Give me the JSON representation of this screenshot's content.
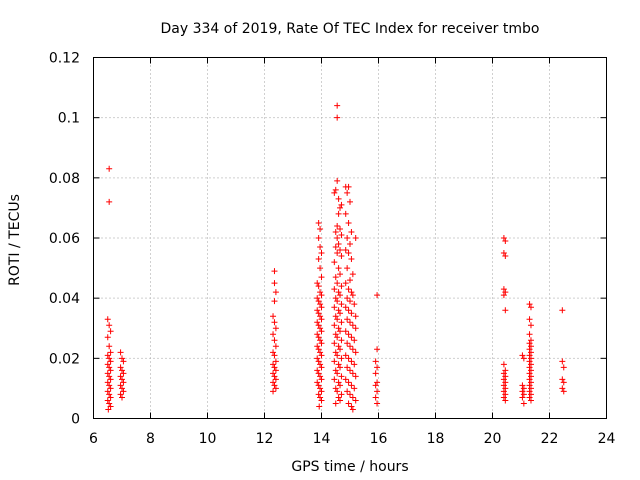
{
  "chart_data": {
    "type": "scatter",
    "title": "Day 334 of 2019, Rate Of TEC Index for receiver tmbo",
    "xlabel": "GPS time / hours",
    "ylabel": "ROTI / TECUs",
    "xlim": [
      6,
      24
    ],
    "ylim": [
      0,
      0.12
    ],
    "xticks": [
      6,
      8,
      10,
      12,
      14,
      16,
      18,
      20,
      22,
      24
    ],
    "yticks": [
      0,
      0.02,
      0.04,
      0.06,
      0.08,
      0.1,
      0.12
    ],
    "xtick_labels": [
      "6",
      "8",
      "10",
      "12",
      "14",
      "16",
      "18",
      "20",
      "22",
      "24"
    ],
    "ytick_labels": [
      "0",
      "0.02",
      "0.04",
      "0.06",
      "0.08",
      "0.1",
      "0.12"
    ],
    "grid": true,
    "marker": "+",
    "color": "#ff0000",
    "series": [
      {
        "name": "ROTI",
        "points": [
          [
            6.55,
            0.083
          ],
          [
            6.55,
            0.072
          ],
          [
            6.5,
            0.033
          ],
          [
            6.55,
            0.031
          ],
          [
            6.6,
            0.029
          ],
          [
            6.5,
            0.027
          ],
          [
            6.55,
            0.024
          ],
          [
            6.6,
            0.022
          ],
          [
            6.5,
            0.021
          ],
          [
            6.55,
            0.02
          ],
          [
            6.6,
            0.019
          ],
          [
            6.5,
            0.018
          ],
          [
            6.55,
            0.017
          ],
          [
            6.6,
            0.016
          ],
          [
            6.5,
            0.015
          ],
          [
            6.55,
            0.014
          ],
          [
            6.6,
            0.013
          ],
          [
            6.5,
            0.012
          ],
          [
            6.55,
            0.011
          ],
          [
            6.6,
            0.01
          ],
          [
            6.5,
            0.009
          ],
          [
            6.55,
            0.008
          ],
          [
            6.6,
            0.007
          ],
          [
            6.5,
            0.006
          ],
          [
            6.55,
            0.005
          ],
          [
            6.6,
            0.004
          ],
          [
            6.52,
            0.003
          ],
          [
            6.95,
            0.022
          ],
          [
            7.0,
            0.02
          ],
          [
            7.05,
            0.019
          ],
          [
            6.95,
            0.017
          ],
          [
            7.0,
            0.016
          ],
          [
            7.05,
            0.015
          ],
          [
            6.95,
            0.014
          ],
          [
            7.0,
            0.013
          ],
          [
            7.05,
            0.012
          ],
          [
            6.95,
            0.011
          ],
          [
            7.0,
            0.01
          ],
          [
            7.05,
            0.009
          ],
          [
            6.95,
            0.008
          ],
          [
            7.0,
            0.007
          ],
          [
            12.35,
            0.049
          ],
          [
            12.35,
            0.045
          ],
          [
            12.4,
            0.042
          ],
          [
            12.35,
            0.039
          ],
          [
            12.3,
            0.034
          ],
          [
            12.35,
            0.032
          ],
          [
            12.4,
            0.03
          ],
          [
            12.3,
            0.028
          ],
          [
            12.35,
            0.026
          ],
          [
            12.4,
            0.024
          ],
          [
            12.3,
            0.022
          ],
          [
            12.35,
            0.021
          ],
          [
            12.4,
            0.019
          ],
          [
            12.3,
            0.018
          ],
          [
            12.35,
            0.017
          ],
          [
            12.4,
            0.016
          ],
          [
            12.3,
            0.015
          ],
          [
            12.35,
            0.014
          ],
          [
            12.4,
            0.013
          ],
          [
            12.3,
            0.012
          ],
          [
            12.35,
            0.011
          ],
          [
            12.4,
            0.01
          ],
          [
            12.3,
            0.009
          ],
          [
            13.9,
            0.065
          ],
          [
            13.95,
            0.063
          ],
          [
            13.9,
            0.06
          ],
          [
            13.95,
            0.057
          ],
          [
            14.0,
            0.055
          ],
          [
            13.9,
            0.053
          ],
          [
            13.95,
            0.05
          ],
          [
            14.0,
            0.047
          ],
          [
            13.85,
            0.045
          ],
          [
            13.9,
            0.044
          ],
          [
            13.95,
            0.042
          ],
          [
            14.0,
            0.041
          ],
          [
            13.85,
            0.04
          ],
          [
            13.9,
            0.039
          ],
          [
            13.95,
            0.038
          ],
          [
            14.0,
            0.037
          ],
          [
            13.85,
            0.036
          ],
          [
            13.9,
            0.035
          ],
          [
            13.95,
            0.034
          ],
          [
            14.0,
            0.033
          ],
          [
            13.85,
            0.032
          ],
          [
            13.9,
            0.031
          ],
          [
            13.95,
            0.03
          ],
          [
            14.0,
            0.029
          ],
          [
            13.85,
            0.028
          ],
          [
            13.9,
            0.027
          ],
          [
            13.95,
            0.026
          ],
          [
            14.0,
            0.025
          ],
          [
            13.85,
            0.024
          ],
          [
            13.9,
            0.023
          ],
          [
            13.95,
            0.022
          ],
          [
            14.0,
            0.021
          ],
          [
            13.85,
            0.02
          ],
          [
            13.9,
            0.019
          ],
          [
            13.95,
            0.018
          ],
          [
            14.0,
            0.017
          ],
          [
            13.85,
            0.016
          ],
          [
            13.9,
            0.015
          ],
          [
            13.95,
            0.014
          ],
          [
            14.0,
            0.013
          ],
          [
            13.85,
            0.012
          ],
          [
            13.9,
            0.011
          ],
          [
            13.95,
            0.01
          ],
          [
            14.0,
            0.009
          ],
          [
            13.9,
            0.008
          ],
          [
            13.95,
            0.007
          ],
          [
            14.0,
            0.006
          ],
          [
            13.92,
            0.004
          ],
          [
            14.55,
            0.104
          ],
          [
            14.55,
            0.1
          ],
          [
            14.55,
            0.079
          ],
          [
            14.5,
            0.076
          ],
          [
            14.45,
            0.075
          ],
          [
            14.6,
            0.073
          ],
          [
            14.65,
            0.07
          ],
          [
            14.7,
            0.071
          ],
          [
            14.6,
            0.068
          ],
          [
            14.55,
            0.064
          ],
          [
            14.65,
            0.063
          ],
          [
            14.5,
            0.062
          ],
          [
            14.55,
            0.06
          ],
          [
            14.7,
            0.061
          ],
          [
            14.6,
            0.058
          ],
          [
            14.65,
            0.056
          ],
          [
            14.5,
            0.057
          ],
          [
            14.55,
            0.055
          ],
          [
            14.7,
            0.054
          ],
          [
            14.45,
            0.052
          ],
          [
            14.6,
            0.05
          ],
          [
            14.65,
            0.048
          ],
          [
            14.5,
            0.047
          ],
          [
            14.55,
            0.045
          ],
          [
            14.7,
            0.044
          ],
          [
            14.45,
            0.043
          ],
          [
            14.6,
            0.042
          ],
          [
            14.65,
            0.041
          ],
          [
            14.5,
            0.04
          ],
          [
            14.55,
            0.039
          ],
          [
            14.7,
            0.038
          ],
          [
            14.45,
            0.037
          ],
          [
            14.6,
            0.036
          ],
          [
            14.65,
            0.035
          ],
          [
            14.5,
            0.034
          ],
          [
            14.55,
            0.033
          ],
          [
            14.7,
            0.032
          ],
          [
            14.45,
            0.031
          ],
          [
            14.6,
            0.03
          ],
          [
            14.65,
            0.029
          ],
          [
            14.5,
            0.028
          ],
          [
            14.55,
            0.027
          ],
          [
            14.7,
            0.026
          ],
          [
            14.45,
            0.025
          ],
          [
            14.6,
            0.024
          ],
          [
            14.65,
            0.023
          ],
          [
            14.5,
            0.022
          ],
          [
            14.55,
            0.021
          ],
          [
            14.7,
            0.02
          ],
          [
            14.45,
            0.019
          ],
          [
            14.6,
            0.018
          ],
          [
            14.65,
            0.017
          ],
          [
            14.5,
            0.016
          ],
          [
            14.55,
            0.015
          ],
          [
            14.7,
            0.014
          ],
          [
            14.45,
            0.013
          ],
          [
            14.6,
            0.012
          ],
          [
            14.65,
            0.011
          ],
          [
            14.5,
            0.01
          ],
          [
            14.55,
            0.009
          ],
          [
            14.7,
            0.008
          ],
          [
            14.6,
            0.007
          ],
          [
            14.65,
            0.006
          ],
          [
            14.5,
            0.005
          ],
          [
            14.85,
            0.077
          ],
          [
            14.95,
            0.077
          ],
          [
            14.9,
            0.075
          ],
          [
            15.0,
            0.072
          ],
          [
            14.85,
            0.068
          ],
          [
            14.95,
            0.065
          ],
          [
            15.05,
            0.062
          ],
          [
            14.9,
            0.06
          ],
          [
            15.2,
            0.06
          ],
          [
            15.0,
            0.058
          ],
          [
            14.85,
            0.056
          ],
          [
            14.95,
            0.055
          ],
          [
            15.05,
            0.053
          ],
          [
            14.9,
            0.05
          ],
          [
            15.1,
            0.048
          ],
          [
            15.0,
            0.046
          ],
          [
            14.85,
            0.045
          ],
          [
            14.95,
            0.043
          ],
          [
            15.05,
            0.042
          ],
          [
            15.1,
            0.041
          ],
          [
            14.9,
            0.04
          ],
          [
            15.0,
            0.039
          ],
          [
            15.15,
            0.038
          ],
          [
            14.85,
            0.037
          ],
          [
            14.95,
            0.036
          ],
          [
            15.05,
            0.035
          ],
          [
            15.2,
            0.034
          ],
          [
            14.9,
            0.033
          ],
          [
            15.0,
            0.032
          ],
          [
            15.1,
            0.031
          ],
          [
            15.2,
            0.03
          ],
          [
            14.85,
            0.029
          ],
          [
            14.95,
            0.028
          ],
          [
            15.05,
            0.027
          ],
          [
            15.15,
            0.026
          ],
          [
            14.9,
            0.025
          ],
          [
            15.0,
            0.024
          ],
          [
            15.1,
            0.023
          ],
          [
            15.2,
            0.022
          ],
          [
            14.85,
            0.021
          ],
          [
            14.95,
            0.02
          ],
          [
            15.05,
            0.019
          ],
          [
            15.15,
            0.018
          ],
          [
            14.9,
            0.017
          ],
          [
            15.0,
            0.016
          ],
          [
            15.1,
            0.015
          ],
          [
            15.2,
            0.014
          ],
          [
            14.85,
            0.013
          ],
          [
            14.95,
            0.012
          ],
          [
            15.05,
            0.011
          ],
          [
            15.15,
            0.01
          ],
          [
            14.9,
            0.009
          ],
          [
            15.0,
            0.008
          ],
          [
            15.1,
            0.007
          ],
          [
            15.2,
            0.006
          ],
          [
            14.95,
            0.005
          ],
          [
            15.05,
            0.004
          ],
          [
            15.1,
            0.003
          ],
          [
            15.95,
            0.041
          ],
          [
            15.95,
            0.023
          ],
          [
            15.9,
            0.019
          ],
          [
            15.95,
            0.017
          ],
          [
            15.9,
            0.015
          ],
          [
            15.95,
            0.012
          ],
          [
            15.9,
            0.011
          ],
          [
            15.95,
            0.009
          ],
          [
            15.9,
            0.007
          ],
          [
            15.95,
            0.005
          ],
          [
            20.4,
            0.06
          ],
          [
            20.45,
            0.059
          ],
          [
            20.4,
            0.055
          ],
          [
            20.45,
            0.054
          ],
          [
            20.4,
            0.043
          ],
          [
            20.45,
            0.042
          ],
          [
            20.4,
            0.041
          ],
          [
            20.45,
            0.036
          ],
          [
            20.4,
            0.018
          ],
          [
            20.45,
            0.016
          ],
          [
            20.4,
            0.015
          ],
          [
            20.45,
            0.014
          ],
          [
            20.4,
            0.013
          ],
          [
            20.45,
            0.012
          ],
          [
            20.4,
            0.011
          ],
          [
            20.45,
            0.01
          ],
          [
            20.4,
            0.009
          ],
          [
            20.45,
            0.008
          ],
          [
            20.4,
            0.007
          ],
          [
            20.45,
            0.006
          ],
          [
            21.05,
            0.021
          ],
          [
            21.1,
            0.02
          ],
          [
            21.05,
            0.011
          ],
          [
            21.1,
            0.01
          ],
          [
            21.05,
            0.009
          ],
          [
            21.1,
            0.008
          ],
          [
            21.05,
            0.007
          ],
          [
            21.1,
            0.005
          ],
          [
            21.3,
            0.038
          ],
          [
            21.35,
            0.037
          ],
          [
            21.3,
            0.033
          ],
          [
            21.35,
            0.031
          ],
          [
            21.3,
            0.028
          ],
          [
            21.35,
            0.026
          ],
          [
            21.3,
            0.025
          ],
          [
            21.35,
            0.024
          ],
          [
            21.3,
            0.023
          ],
          [
            21.35,
            0.022
          ],
          [
            21.3,
            0.021
          ],
          [
            21.35,
            0.02
          ],
          [
            21.3,
            0.019
          ],
          [
            21.35,
            0.018
          ],
          [
            21.3,
            0.017
          ],
          [
            21.35,
            0.016
          ],
          [
            21.3,
            0.015
          ],
          [
            21.35,
            0.014
          ],
          [
            21.3,
            0.013
          ],
          [
            21.35,
            0.012
          ],
          [
            21.3,
            0.011
          ],
          [
            21.35,
            0.01
          ],
          [
            21.3,
            0.009
          ],
          [
            21.35,
            0.008
          ],
          [
            21.3,
            0.007
          ],
          [
            21.35,
            0.006
          ],
          [
            22.45,
            0.036
          ],
          [
            22.45,
            0.019
          ],
          [
            22.5,
            0.017
          ],
          [
            22.45,
            0.013
          ],
          [
            22.5,
            0.012
          ],
          [
            22.45,
            0.01
          ],
          [
            22.5,
            0.009
          ]
        ]
      }
    ]
  }
}
